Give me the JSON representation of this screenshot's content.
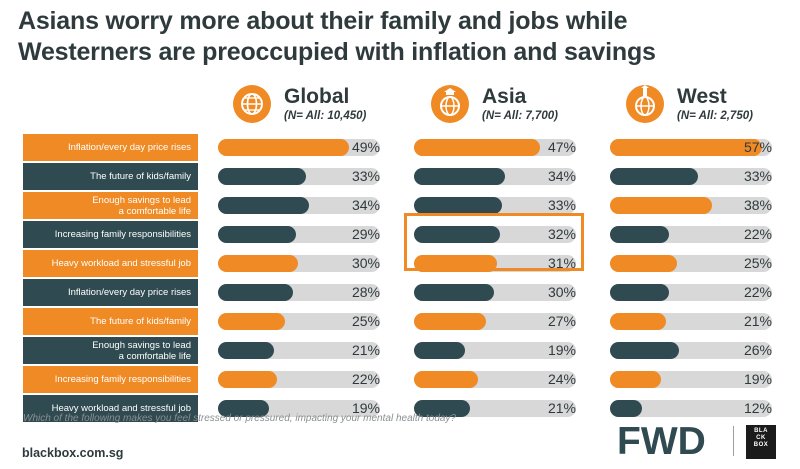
{
  "title": {
    "line1": "Asians worry more about their family and jobs while",
    "line2": "Westerners are preoccupied with inflation and savings"
  },
  "columns": [
    {
      "name": "Global",
      "sub": "(N= All: 10,450)"
    },
    {
      "name": "Asia",
      "sub": "(N= All: 7,700)"
    },
    {
      "name": "West",
      "sub": "(N= All: 2,750)"
    }
  ],
  "colors": {
    "orange": "#f08a24",
    "dark": "#2f4a50",
    "track": "#d8d8d8"
  },
  "chart_data": {
    "type": "bar",
    "title": "Asians worry more about their family and jobs while Westerners are preoccupied with inflation and savings",
    "categories": [
      "Inflation/every day price rises",
      "The future of kids/family",
      "Enough savings to lead\na comfortable life",
      "Increasing family responsibilities",
      "Heavy workload and stressful job",
      "Inflation/every day price rises",
      "The future of kids/family",
      "Enough savings to lead\na comfortable life",
      "Increasing family responsibilities",
      "Heavy workload and stressful job"
    ],
    "row_styles": [
      "orange",
      "dark",
      "orange",
      "dark",
      "orange",
      "dark",
      "orange",
      "dark",
      "orange",
      "dark"
    ],
    "series": [
      {
        "name": "Global",
        "values": [
          49,
          33,
          34,
          29,
          30,
          28,
          25,
          21,
          22,
          19
        ],
        "styles": [
          "orange",
          "dark",
          "dark",
          "dark",
          "orange",
          "dark",
          "orange",
          "dark",
          "orange",
          "dark"
        ]
      },
      {
        "name": "Asia",
        "values": [
          47,
          34,
          33,
          32,
          31,
          30,
          27,
          19,
          24,
          21
        ],
        "styles": [
          "orange",
          "dark",
          "dark",
          "dark",
          "orange",
          "dark",
          "orange",
          "dark",
          "orange",
          "dark"
        ]
      },
      {
        "name": "West",
        "values": [
          57,
          33,
          38,
          22,
          25,
          22,
          21,
          26,
          19,
          12
        ],
        "styles": [
          "orange",
          "dark",
          "orange",
          "dark",
          "orange",
          "dark",
          "orange",
          "dark",
          "orange",
          "dark"
        ]
      }
    ],
    "unit": "%",
    "xlim": [
      0,
      100
    ]
  },
  "footer": {
    "question": "Which of the following makes you feel stressed or pressured, impacting your mental health today?",
    "source": "blackbox.com.sg",
    "logo_fwd": "FWD",
    "logo_bb": [
      "BLA",
      "CK",
      "BOX"
    ]
  }
}
